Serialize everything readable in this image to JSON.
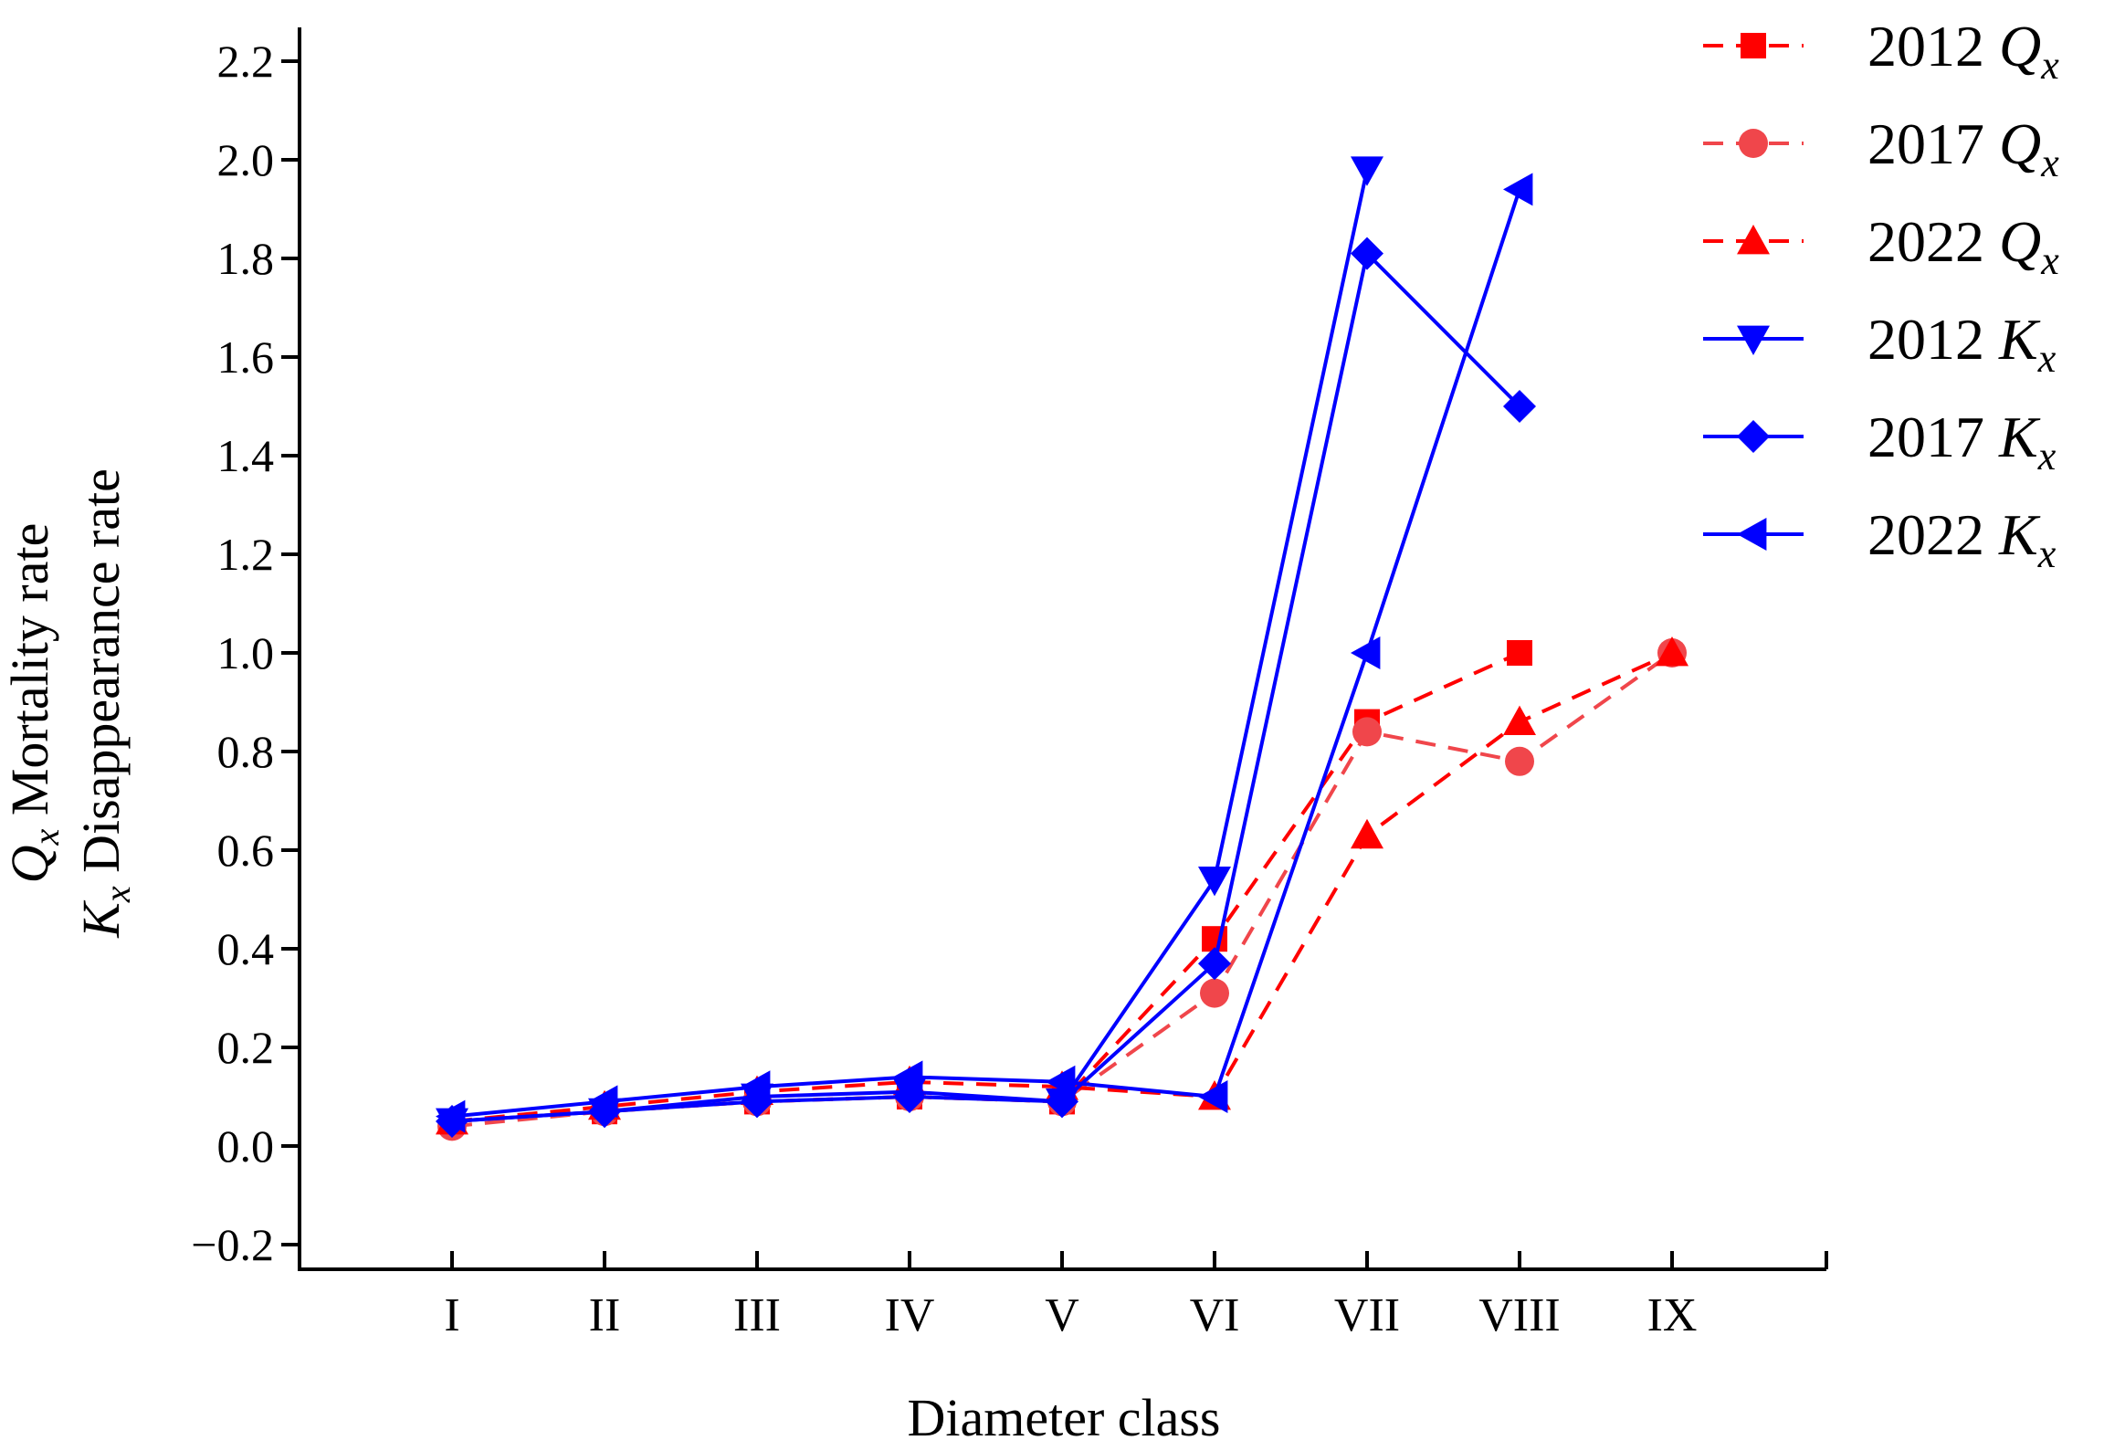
{
  "chart_data": {
    "type": "line",
    "title": "",
    "xlabel": "Diameter class",
    "ylabel": {
      "line1": {
        "symbol": "Q",
        "sub": "x",
        "text": " Mortality rate"
      },
      "line2": {
        "symbol": "K",
        "sub": "x",
        "text": " Disappearance rate"
      }
    },
    "categories": [
      "I",
      "II",
      "III",
      "IV",
      "V",
      "VI",
      "VII",
      "VIII",
      "IX"
    ],
    "ylim": [
      -0.25,
      2.25
    ],
    "yticks": [
      -0.2,
      0.0,
      0.2,
      0.4,
      0.6,
      0.8,
      1.0,
      1.2,
      1.4,
      1.6,
      1.8,
      2.0,
      2.2
    ],
    "ytick_labels": [
      "−0.2",
      "0.0",
      "0.2",
      "0.4",
      "0.6",
      "0.8",
      "1.0",
      "1.2",
      "1.4",
      "1.6",
      "1.8",
      "2.0",
      "2.2"
    ],
    "grid": false,
    "legend_position": "top-right",
    "series": [
      {
        "name": "2012 Qx",
        "year": "2012",
        "symbol": "Q",
        "sub": "x",
        "color": "#ff0000",
        "marker": "square",
        "dashed": true,
        "values": [
          0.05,
          0.07,
          0.09,
          0.1,
          0.09,
          0.42,
          0.86,
          1.0,
          null
        ]
      },
      {
        "name": "2017 Qx",
        "year": "2017",
        "symbol": "Q",
        "sub": "x",
        "color": "#f0464b",
        "marker": "circle",
        "dashed": true,
        "values": [
          0.04,
          0.07,
          0.09,
          0.1,
          0.09,
          0.31,
          0.84,
          0.78,
          1.0
        ]
      },
      {
        "name": "2022 Qx",
        "year": "2022",
        "symbol": "Q",
        "sub": "x",
        "color": "#ff0000",
        "marker": "triangle-up",
        "dashed": true,
        "values": [
          0.05,
          0.08,
          0.11,
          0.13,
          0.12,
          0.1,
          0.63,
          0.86,
          1.0
        ]
      },
      {
        "name": "2012 Kx",
        "year": "2012",
        "symbol": "K",
        "sub": "x",
        "color": "#0000ff",
        "marker": "triangle-down",
        "dashed": false,
        "values": [
          0.05,
          0.07,
          0.1,
          0.11,
          0.09,
          0.54,
          1.98,
          null,
          null
        ]
      },
      {
        "name": "2017 Kx",
        "year": "2017",
        "symbol": "K",
        "sub": "x",
        "color": "#0000ff",
        "marker": "diamond",
        "dashed": false,
        "values": [
          0.05,
          0.07,
          0.09,
          0.1,
          0.09,
          0.37,
          1.81,
          1.5,
          null
        ]
      },
      {
        "name": "2022 Kx",
        "year": "2022",
        "symbol": "K",
        "sub": "x",
        "color": "#0000ff",
        "marker": "triangle-left",
        "dashed": false,
        "values": [
          0.06,
          0.09,
          0.12,
          0.14,
          0.13,
          0.1,
          1.0,
          1.94,
          null
        ]
      }
    ]
  }
}
